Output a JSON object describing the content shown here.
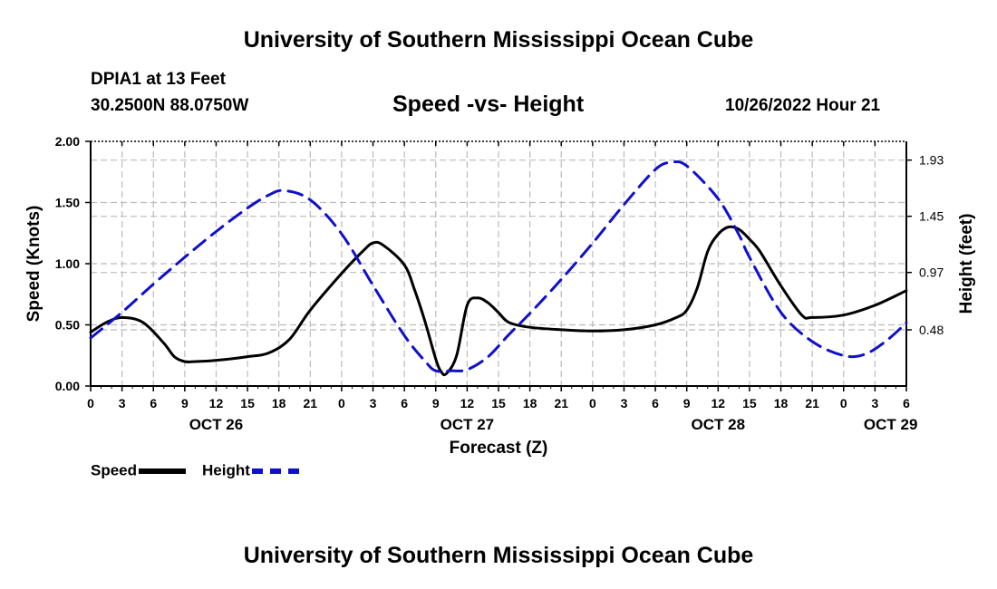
{
  "header": {
    "title": "University of Southern Mississippi Ocean Cube",
    "station": "DPIA1 at 13 Feet",
    "coords": "30.2500N  88.0750W",
    "chart_title": "Speed -vs- Height",
    "datetime": "10/26/2022 Hour 21"
  },
  "footer": {
    "title": "University of Southern Mississippi Ocean Cube"
  },
  "legend": {
    "speed_label": "Speed",
    "height_label": "Height"
  },
  "colors": {
    "speed": "#000000",
    "height": "#1010cc",
    "grid": "#bbbbbb"
  },
  "chart_data": {
    "type": "line",
    "title": "Speed -vs- Height",
    "xlabel": "Forecast (Z)",
    "ylabel": "Speed (Knots)",
    "y2label": "Height (feet)",
    "x_range_hours": [
      0,
      78
    ],
    "ylim": [
      0,
      2
    ],
    "y2lim": [
      0.0,
      2.09
    ],
    "y_ticks": [
      "0.00",
      "0.50",
      "1.00",
      "1.50",
      "2.00"
    ],
    "y_tick_values": [
      0,
      0.5,
      1.0,
      1.5,
      2.0
    ],
    "y2_ticks": [
      "0.48",
      "0.97",
      "1.45",
      "1.93"
    ],
    "y2_tick_values": [
      0.48,
      0.97,
      1.45,
      1.93
    ],
    "x_ticks": [
      "0",
      "3",
      "6",
      "9",
      "12",
      "15",
      "18",
      "21",
      "0",
      "3",
      "6",
      "9",
      "12",
      "15",
      "18",
      "21",
      "0",
      "3",
      "6",
      "9",
      "12",
      "15",
      "18",
      "21",
      "0",
      "3",
      "6"
    ],
    "x_tick_hours": [
      0,
      3,
      6,
      9,
      12,
      15,
      18,
      21,
      24,
      27,
      30,
      33,
      36,
      39,
      42,
      45,
      48,
      51,
      54,
      57,
      60,
      63,
      66,
      69,
      72,
      75,
      78
    ],
    "day_labels": [
      "OCT 26",
      "OCT 27",
      "OCT 28",
      "OCT 29"
    ],
    "day_label_hours": [
      12,
      36,
      60,
      76.5
    ],
    "grid": true,
    "series": [
      {
        "name": "Speed",
        "axis": "left",
        "x": [
          0,
          1.5,
          3,
          5,
          7,
          8,
          9,
          10,
          12,
          15,
          17,
          19,
          21,
          24,
          26,
          27,
          28,
          30,
          31,
          32,
          33,
          33.5,
          34,
          35,
          36,
          37,
          38,
          39,
          40,
          42,
          45,
          48,
          51,
          54,
          56,
          57,
          58,
          59,
          60,
          61,
          62,
          63,
          64,
          66,
          68,
          69,
          72,
          75,
          78
        ],
        "y": [
          0.44,
          0.52,
          0.56,
          0.52,
          0.35,
          0.24,
          0.2,
          0.2,
          0.21,
          0.24,
          0.27,
          0.38,
          0.62,
          0.92,
          1.1,
          1.17,
          1.15,
          0.99,
          0.78,
          0.52,
          0.22,
          0.12,
          0.1,
          0.25,
          0.66,
          0.72,
          0.68,
          0.6,
          0.52,
          0.48,
          0.46,
          0.45,
          0.46,
          0.5,
          0.56,
          0.62,
          0.8,
          1.1,
          1.24,
          1.3,
          1.28,
          1.2,
          1.1,
          0.82,
          0.58,
          0.56,
          0.58,
          0.66,
          0.78
        ]
      },
      {
        "name": "Height",
        "axis": "right",
        "x": [
          0,
          3,
          6,
          9,
          12,
          15,
          17,
          18.5,
          21,
          24,
          27,
          30,
          32,
          33,
          34.5,
          36,
          38,
          40,
          42,
          45,
          48,
          51,
          54,
          55.5,
          57,
          60,
          62,
          63,
          66,
          69,
          72,
          74,
          76,
          78
        ],
        "y": [
          0.41,
          0.63,
          0.87,
          1.1,
          1.32,
          1.52,
          1.63,
          1.67,
          1.59,
          1.3,
          0.86,
          0.43,
          0.21,
          0.13,
          0.13,
          0.14,
          0.25,
          0.44,
          0.62,
          0.91,
          1.22,
          1.55,
          1.85,
          1.91,
          1.88,
          1.6,
          1.29,
          1.1,
          0.63,
          0.38,
          0.26,
          0.27,
          0.38,
          0.54
        ]
      }
    ]
  }
}
